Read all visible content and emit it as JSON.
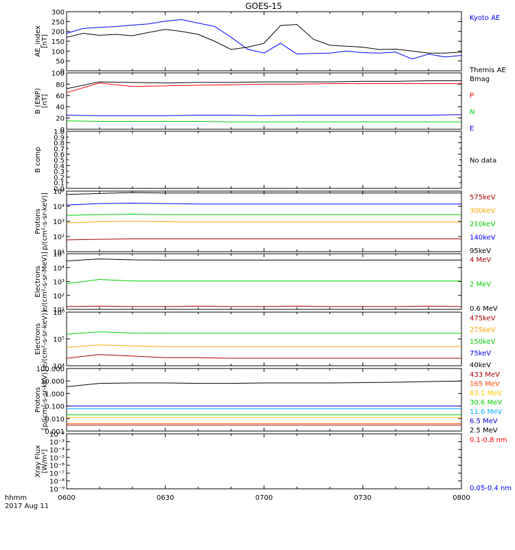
{
  "title": "GOES-15",
  "time_axis": {
    "label": "hhmm",
    "date": "2017 Aug 11",
    "ticks": [
      "0600",
      "0630",
      "0700",
      "0730",
      "0800"
    ]
  },
  "chart_data": [
    {
      "type": "line",
      "ylabel": [
        "AE_index",
        "[nT]"
      ],
      "ylim": [
        0,
        300
      ],
      "scale": "linear",
      "yticks": [
        "0",
        "50",
        "100",
        "150",
        "200",
        "250",
        "300"
      ],
      "x_minutes": [
        0,
        5,
        10,
        15,
        20,
        25,
        30,
        35,
        40,
        45,
        50,
        55,
        60,
        65,
        70,
        75,
        80,
        85,
        90,
        95,
        100,
        105,
        110,
        115,
        120
      ],
      "series": [
        {
          "name": "Kyoto AE",
          "color": "#0000ff",
          "values": [
            190,
            215,
            220,
            225,
            232,
            238,
            252,
            260,
            242,
            225,
            170,
            110,
            90,
            140,
            85,
            88,
            90,
            100,
            92,
            90,
            95,
            60,
            85,
            70,
            78
          ]
        },
        {
          "name": "Themis AE",
          "color": "#000000",
          "values": [
            170,
            190,
            180,
            185,
            178,
            195,
            210,
            200,
            185,
            150,
            108,
            120,
            140,
            230,
            235,
            160,
            130,
            125,
            120,
            108,
            110,
            100,
            90,
            90,
            95
          ]
        }
      ]
    },
    {
      "type": "line",
      "ylabel": [
        "B (ENP)",
        "[nT]"
      ],
      "ylim": [
        0,
        100
      ],
      "scale": "linear",
      "yticks": [
        "0",
        "20",
        "40",
        "60",
        "80",
        "100"
      ],
      "x_minutes": [
        0,
        10,
        20,
        30,
        40,
        50,
        60,
        70,
        80,
        90,
        100,
        110,
        120
      ],
      "series": [
        {
          "name": "Bmag",
          "color": "#000000",
          "values": [
            72,
            84,
            83,
            82,
            83,
            83,
            84,
            84,
            84,
            85,
            85,
            86,
            86
          ]
        },
        {
          "name": "P",
          "color": "#ff0000",
          "values": [
            65,
            82,
            76,
            77,
            78,
            79,
            80,
            80,
            81,
            81,
            81,
            81,
            81
          ]
        },
        {
          "name": "N",
          "color": "#00cc00",
          "values": [
            15,
            14,
            14,
            14,
            14,
            13,
            13,
            13,
            13,
            13,
            13,
            13,
            13
          ]
        },
        {
          "name": "E",
          "color": "#0000ff",
          "values": [
            25,
            24,
            24,
            24,
            25,
            25,
            24,
            25,
            25,
            25,
            25,
            25,
            26
          ]
        }
      ]
    },
    {
      "type": "line",
      "ylabel": [
        "B comp"
      ],
      "ylim": [
        0,
        1
      ],
      "scale": "linear",
      "yticks": [
        "0.0",
        "0.2",
        "0.4",
        "0.6",
        "0.8",
        "1.0"
      ],
      "minor_yticks": [
        "0.1",
        "0.3",
        "0.5",
        "0.7",
        "0.9"
      ],
      "series": [],
      "right_labels": [
        {
          "text": "No data",
          "color": "#000000"
        }
      ]
    },
    {
      "type": "line",
      "ylabel": [
        "Protons",
        "p/(cm²-s-sr-keV)]"
      ],
      "scale": "log",
      "ylim_log10": [
        1,
        5
      ],
      "yticks": [
        "10¹",
        "10²",
        "10³",
        "10⁴",
        "10⁵"
      ],
      "x_minutes": [
        0,
        10,
        20,
        30,
        40,
        50,
        60,
        70,
        80,
        90,
        100,
        110,
        120
      ],
      "series": [
        {
          "name": "575keV",
          "color": "#aa0000",
          "values": [
            60,
            65,
            70,
            70,
            70,
            70,
            70,
            70,
            70,
            70,
            70,
            70,
            70
          ]
        },
        {
          "name": "300keV",
          "color": "#ffa500",
          "values": [
            800,
            950,
            1000,
            950,
            900,
            900,
            900,
            900,
            900,
            900,
            900,
            900,
            900
          ]
        },
        {
          "name": "210keV",
          "color": "#00cc00",
          "values": [
            2500,
            2800,
            3000,
            2800,
            2800,
            2800,
            2800,
            2800,
            2800,
            2800,
            2800,
            2800,
            2800
          ]
        },
        {
          "name": "140keV",
          "color": "#0000ff",
          "values": [
            12000,
            15000,
            16000,
            15000,
            14000,
            14000,
            14000,
            14000,
            14000,
            14000,
            14000,
            14000,
            14000
          ]
        },
        {
          "name": "95keV",
          "color": "#000000",
          "values": [
            60000,
            70000,
            80000,
            75000,
            75000,
            75000,
            75000,
            75000,
            75000,
            75000,
            75000,
            75000,
            75000
          ]
        }
      ]
    },
    {
      "type": "line",
      "ylabel": [
        "Electrons",
        "e/(cm²-s-sr-MeV)]"
      ],
      "scale": "log",
      "ylim_log10": [
        1,
        5
      ],
      "yticks": [
        "10¹",
        "10²",
        "10³",
        "10⁴",
        "10⁵"
      ],
      "x_minutes": [
        0,
        10,
        20,
        30,
        40,
        50,
        60,
        70,
        80,
        90,
        100,
        110,
        120
      ],
      "series": [
        {
          "name": "4 MeV",
          "color": "#aa0000",
          "values": [
            16,
            17,
            16,
            16,
            17,
            16,
            16,
            17,
            16,
            16,
            16,
            17,
            16
          ]
        },
        {
          "name": "2 MeV",
          "color": "#00cc00",
          "values": [
            700,
            1400,
            1100,
            1100,
            1100,
            1100,
            1100,
            1100,
            1100,
            1100,
            1100,
            1100,
            1100
          ]
        },
        {
          "name": "0.6 MeV",
          "color": "#000000",
          "values": [
            30000,
            42000,
            36000,
            35000,
            35000,
            35000,
            35000,
            35000,
            35000,
            35000,
            35000,
            35000,
            35000
          ]
        }
      ]
    },
    {
      "type": "line",
      "ylabel": [
        "Electrons",
        "e/(cm²-s-sr-keV)]"
      ],
      "scale": "log",
      "ylim_log10": [
        4,
        6
      ],
      "yticks": [
        "10⁴",
        "10⁵",
        "10⁶"
      ],
      "x_minutes": [
        0,
        10,
        20,
        30,
        40,
        50,
        60,
        70,
        80,
        90,
        100,
        110,
        120
      ],
      "series": [
        {
          "name": "475keV",
          "color": "#aa0000",
          "values": [
            19000,
            26000,
            23000,
            20000,
            20000,
            19000,
            19000,
            19000,
            19000,
            19000,
            19000,
            19000,
            19000
          ]
        },
        {
          "name": "275keV",
          "color": "#ffa500",
          "values": [
            48000,
            60000,
            55000,
            52000,
            52000,
            52000,
            52000,
            52000,
            52000,
            52000,
            52000,
            52000,
            52000
          ]
        },
        {
          "name": "150keV",
          "color": "#00cc00",
          "values": [
            150000,
            185000,
            165000,
            162000,
            162000,
            162000,
            162000,
            162000,
            162000,
            162000,
            162000,
            162000,
            162000
          ]
        },
        {
          "name": "75keV",
          "color": "#0000ff",
          "values": [
            0,
            0,
            0,
            0,
            0,
            0,
            0,
            0,
            0,
            0,
            0,
            0,
            0
          ]
        },
        {
          "name": "40keV",
          "color": "#000000",
          "values": [
            0,
            0,
            0,
            0,
            0,
            0,
            0,
            0,
            0,
            0,
            0,
            0,
            0
          ]
        }
      ]
    },
    {
      "type": "line",
      "ylabel": [
        "Protons",
        "[p/(cm²-s-sr-keV)]"
      ],
      "scale": "log",
      "ylim_log10": [
        -3,
        2
      ],
      "yticks": [
        "0.001",
        "0.010",
        "0.100",
        "1.000",
        "10.000",
        "100.000"
      ],
      "x_minutes": [
        0,
        10,
        20,
        30,
        40,
        50,
        60,
        70,
        80,
        90,
        100,
        110,
        120
      ],
      "series": [
        {
          "name": "433 MeV",
          "color": "#aa0000",
          "values": [
            0.003,
            0.003,
            0.003,
            0.003,
            0.003,
            0.003,
            0.003,
            0.003,
            0.003,
            0.003,
            0.003,
            0.003,
            0.003
          ]
        },
        {
          "name": "165 MeV",
          "color": "#ff4500",
          "values": [
            0.004,
            0.004,
            0.004,
            0.004,
            0.004,
            0.004,
            0.004,
            0.004,
            0.004,
            0.004,
            0.004,
            0.004,
            0.004
          ]
        },
        {
          "name": "63.1 MeV",
          "color": "#ffcc00",
          "values": [
            0.012,
            0.012,
            0.012,
            0.012,
            0.012,
            0.012,
            0.012,
            0.012,
            0.012,
            0.012,
            0.012,
            0.012,
            0.012
          ]
        },
        {
          "name": "30.6 MeV",
          "color": "#00cc00",
          "values": [
            0.02,
            0.02,
            0.02,
            0.02,
            0.02,
            0.02,
            0.02,
            0.02,
            0.02,
            0.02,
            0.02,
            0.02,
            0.02
          ]
        },
        {
          "name": "11.6 MeV",
          "color": "#00aaff",
          "values": [
            0.06,
            0.06,
            0.06,
            0.06,
            0.06,
            0.06,
            0.06,
            0.06,
            0.06,
            0.06,
            0.06,
            0.06,
            0.06
          ]
        },
        {
          "name": "6.5 MeV",
          "color": "#0000cc",
          "values": [
            0.1,
            0.1,
            0.1,
            0.1,
            0.1,
            0.1,
            0.1,
            0.1,
            0.1,
            0.1,
            0.1,
            0.1,
            0.1
          ]
        },
        {
          "name": "2.5 MeV",
          "color": "#000000",
          "values": [
            3.5,
            6.5,
            7,
            7,
            6.5,
            6.5,
            7,
            7,
            7,
            7.5,
            8,
            9,
            10
          ]
        }
      ]
    },
    {
      "type": "line",
      "ylabel": [
        "Xray Flux",
        "[W/m²]"
      ],
      "scale": "log",
      "ylim_log10": [
        -9,
        -2
      ],
      "yticks": [
        "10⁻⁹",
        "10⁻⁸",
        "10⁻⁷",
        "10⁻⁶",
        "10⁻⁵",
        "10⁻⁴",
        "10⁻³",
        "10⁻²"
      ],
      "series": [
        {
          "name": "0.1-0.8 nm",
          "color": "#ff0000",
          "values": []
        },
        {
          "name": "0.05-0.4 nm",
          "color": "#0000ff",
          "values": []
        }
      ]
    }
  ]
}
